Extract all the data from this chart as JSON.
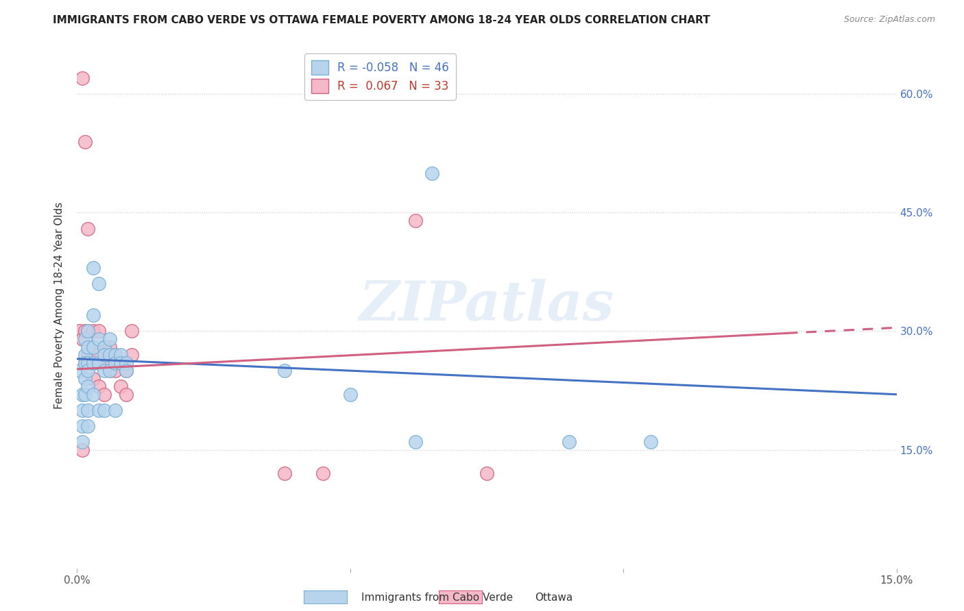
{
  "title": "IMMIGRANTS FROM CABO VERDE VS OTTAWA FEMALE POVERTY AMONG 18-24 YEAR OLDS CORRELATION CHART",
  "source": "Source: ZipAtlas.com",
  "ylabel": "Female Poverty Among 18-24 Year Olds",
  "ytick_labels": [
    "15.0%",
    "30.0%",
    "45.0%",
    "60.0%"
  ],
  "ytick_values": [
    0.15,
    0.3,
    0.45,
    0.6
  ],
  "xlim": [
    0.0,
    0.15
  ],
  "ylim": [
    0.0,
    0.665
  ],
  "cabo_verde_x": [
    0.0005,
    0.001,
    0.001,
    0.001,
    0.001,
    0.0015,
    0.0015,
    0.0015,
    0.0015,
    0.0015,
    0.002,
    0.002,
    0.002,
    0.002,
    0.002,
    0.002,
    0.002,
    0.003,
    0.003,
    0.003,
    0.003,
    0.003,
    0.004,
    0.004,
    0.004,
    0.004,
    0.005,
    0.005,
    0.005,
    0.005,
    0.006,
    0.006,
    0.006,
    0.007,
    0.007,
    0.007,
    0.008,
    0.008,
    0.009,
    0.009,
    0.038,
    0.05,
    0.062,
    0.065,
    0.09,
    0.105
  ],
  "cabo_verde_y": [
    0.25,
    0.22,
    0.2,
    0.18,
    0.16,
    0.29,
    0.27,
    0.26,
    0.24,
    0.22,
    0.3,
    0.28,
    0.26,
    0.25,
    0.23,
    0.2,
    0.18,
    0.38,
    0.32,
    0.28,
    0.26,
    0.22,
    0.36,
    0.29,
    0.26,
    0.2,
    0.28,
    0.27,
    0.25,
    0.2,
    0.29,
    0.27,
    0.25,
    0.27,
    0.26,
    0.2,
    0.27,
    0.26,
    0.26,
    0.25,
    0.25,
    0.22,
    0.16,
    0.5,
    0.16,
    0.16
  ],
  "ottawa_x": [
    0.0005,
    0.001,
    0.001,
    0.001,
    0.0015,
    0.0015,
    0.0015,
    0.002,
    0.002,
    0.002,
    0.003,
    0.003,
    0.003,
    0.004,
    0.004,
    0.004,
    0.005,
    0.005,
    0.005,
    0.006,
    0.006,
    0.007,
    0.007,
    0.008,
    0.008,
    0.009,
    0.009,
    0.01,
    0.01,
    0.038,
    0.045,
    0.062,
    0.075
  ],
  "ottawa_y": [
    0.3,
    0.62,
    0.29,
    0.15,
    0.54,
    0.3,
    0.26,
    0.43,
    0.3,
    0.27,
    0.3,
    0.28,
    0.24,
    0.3,
    0.27,
    0.23,
    0.28,
    0.26,
    0.22,
    0.28,
    0.25,
    0.27,
    0.25,
    0.26,
    0.23,
    0.25,
    0.22,
    0.3,
    0.27,
    0.12,
    0.12,
    0.44,
    0.12
  ],
  "cabo_verde_color": "#b8d4ed",
  "cabo_verde_edge": "#7aafd4",
  "ottawa_color": "#f5b8c8",
  "ottawa_edge": "#d06080",
  "trend_cabo_verde_color": "#4472c4",
  "trend_ottawa_color": "#d06080",
  "background_color": "#ffffff",
  "watermark": "ZIPatlas",
  "R_cabo": -0.058,
  "N_cabo": 46,
  "R_ottawa": 0.067,
  "N_ottawa": 33
}
